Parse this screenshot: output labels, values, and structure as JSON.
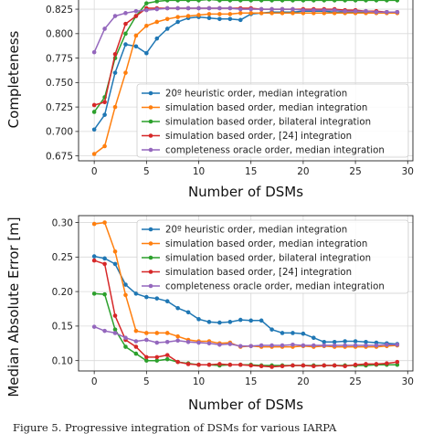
{
  "chart_data": [
    {
      "type": "line",
      "title": "",
      "xlabel": "Number of DSMs",
      "ylabel": "Completeness",
      "xlim": [
        -1.5,
        30.5
      ],
      "ylim": [
        0.67,
        0.84
      ],
      "xticks": [
        0,
        5,
        10,
        15,
        20,
        25,
        30
      ],
      "yticks": [
        0.675,
        0.7,
        0.725,
        0.75,
        0.775,
        0.8,
        0.825
      ],
      "ytick_labels": [
        "0.675",
        "0.700",
        "0.725",
        "0.750",
        "0.775",
        "0.800",
        "0.825"
      ],
      "grid": true,
      "legend": "lower right",
      "x": [
        0,
        1,
        2,
        3,
        4,
        5,
        6,
        7,
        8,
        9,
        10,
        11,
        12,
        13,
        14,
        15,
        16,
        17,
        18,
        19,
        20,
        21,
        22,
        23,
        24,
        25,
        26,
        27,
        28,
        29
      ],
      "series": [
        {
          "name": "20º heuristic order, median integration",
          "color": "#1f77b4",
          "values": [
            0.702,
            0.717,
            0.76,
            0.789,
            0.787,
            0.78,
            0.795,
            0.805,
            0.812,
            0.816,
            0.817,
            0.816,
            0.815,
            0.815,
            0.814,
            0.82,
            0.821,
            0.822,
            0.822,
            0.822,
            0.823,
            0.823,
            0.823,
            0.822,
            0.822,
            0.822,
            0.822,
            0.822,
            0.822,
            0.822
          ]
        },
        {
          "name": "simulation based order, median integration",
          "color": "#ff7f0e",
          "values": [
            0.677,
            0.685,
            0.725,
            0.76,
            0.798,
            0.808,
            0.812,
            0.815,
            0.817,
            0.818,
            0.819,
            0.82,
            0.82,
            0.82,
            0.821,
            0.821,
            0.821,
            0.821,
            0.821,
            0.821,
            0.821,
            0.821,
            0.821,
            0.821,
            0.821,
            0.821,
            0.821,
            0.821,
            0.821,
            0.821
          ]
        },
        {
          "name": "simulation based order, bilateral integration",
          "color": "#2ca02c",
          "values": [
            0.72,
            0.735,
            0.775,
            0.8,
            0.818,
            0.831,
            0.833,
            0.834,
            0.834,
            0.834,
            0.834,
            0.835,
            0.834,
            0.834,
            0.834,
            0.834,
            0.834,
            0.834,
            0.834,
            0.834,
            0.834,
            0.834,
            0.834,
            0.834,
            0.834,
            0.834,
            0.834,
            0.834,
            0.834,
            0.834
          ]
        },
        {
          "name": "simulation based order, [24] integration",
          "color": "#d62728",
          "values": [
            0.727,
            0.73,
            0.779,
            0.81,
            0.818,
            0.826,
            0.826,
            0.826,
            0.826,
            0.826,
            0.826,
            0.826,
            0.826,
            0.826,
            0.826,
            0.826,
            0.825,
            0.825,
            0.825,
            0.825,
            0.825,
            0.825,
            0.825,
            0.825,
            0.824,
            0.824,
            0.823,
            0.823,
            0.822,
            0.822
          ]
        },
        {
          "name": "completeness oracle order, median integration",
          "color": "#9467bd",
          "values": [
            0.781,
            0.805,
            0.818,
            0.821,
            0.823,
            0.824,
            0.825,
            0.826,
            0.826,
            0.826,
            0.826,
            0.826,
            0.826,
            0.826,
            0.825,
            0.825,
            0.825,
            0.825,
            0.825,
            0.825,
            0.824,
            0.824,
            0.824,
            0.824,
            0.823,
            0.823,
            0.823,
            0.822,
            0.822,
            0.822
          ]
        }
      ]
    },
    {
      "type": "line",
      "title": "",
      "xlabel": "Number of DSMs",
      "ylabel": "Median Absolute Error [m]",
      "xlim": [
        -1.5,
        30.5
      ],
      "ylim": [
        0.085,
        0.31
      ],
      "xticks": [
        0,
        5,
        10,
        15,
        20,
        25,
        30
      ],
      "yticks": [
        0.1,
        0.15,
        0.2,
        0.25,
        0.3
      ],
      "ytick_labels": [
        "0.10",
        "0.15",
        "0.20",
        "0.25",
        "0.30"
      ],
      "grid": true,
      "legend": "upper right",
      "x": [
        0,
        1,
        2,
        3,
        4,
        5,
        6,
        7,
        8,
        9,
        10,
        11,
        12,
        13,
        14,
        15,
        16,
        17,
        18,
        19,
        20,
        21,
        22,
        23,
        24,
        25,
        26,
        27,
        28,
        29
      ],
      "series": [
        {
          "name": "20º heuristic order, median integration",
          "color": "#1f77b4",
          "values": [
            0.251,
            0.248,
            0.24,
            0.21,
            0.197,
            0.192,
            0.19,
            0.186,
            0.176,
            0.17,
            0.16,
            0.156,
            0.155,
            0.156,
            0.159,
            0.158,
            0.158,
            0.145,
            0.14,
            0.14,
            0.139,
            0.133,
            0.127,
            0.127,
            0.128,
            0.128,
            0.127,
            0.126,
            0.125,
            0.124
          ]
        },
        {
          "name": "simulation based order, median integration",
          "color": "#ff7f0e",
          "values": [
            0.298,
            0.3,
            0.258,
            0.195,
            0.143,
            0.14,
            0.14,
            0.14,
            0.135,
            0.13,
            0.128,
            0.128,
            0.125,
            0.126,
            0.12,
            0.121,
            0.12,
            0.12,
            0.12,
            0.12,
            0.121,
            0.12,
            0.121,
            0.12,
            0.12,
            0.12,
            0.12,
            0.12,
            0.121,
            0.122
          ]
        },
        {
          "name": "simulation based order, bilateral integration",
          "color": "#2ca02c",
          "values": [
            0.197,
            0.196,
            0.145,
            0.12,
            0.11,
            0.1,
            0.1,
            0.102,
            0.098,
            0.096,
            0.094,
            0.094,
            0.093,
            0.094,
            0.094,
            0.094,
            0.093,
            0.093,
            0.093,
            0.093,
            0.093,
            0.093,
            0.093,
            0.093,
            0.093,
            0.093,
            0.093,
            0.094,
            0.094,
            0.094
          ]
        },
        {
          "name": "simulation based order, [24] integration",
          "color": "#d62728",
          "values": [
            0.245,
            0.24,
            0.165,
            0.13,
            0.12,
            0.105,
            0.105,
            0.108,
            0.098,
            0.095,
            0.094,
            0.094,
            0.095,
            0.094,
            0.094,
            0.093,
            0.092,
            0.091,
            0.092,
            0.093,
            0.093,
            0.092,
            0.093,
            0.093,
            0.092,
            0.094,
            0.095,
            0.095,
            0.096,
            0.098
          ]
        },
        {
          "name": "completeness oracle order, median integration",
          "color": "#9467bd",
          "values": [
            0.149,
            0.143,
            0.14,
            0.133,
            0.128,
            0.13,
            0.126,
            0.127,
            0.129,
            0.127,
            0.126,
            0.125,
            0.123,
            0.124,
            0.121,
            0.121,
            0.122,
            0.122,
            0.122,
            0.123,
            0.122,
            0.122,
            0.122,
            0.122,
            0.122,
            0.122,
            0.122,
            0.122,
            0.123,
            0.123
          ]
        }
      ]
    }
  ],
  "caption": "Figure 5. Progressive integration of DSMs for various IARPA"
}
